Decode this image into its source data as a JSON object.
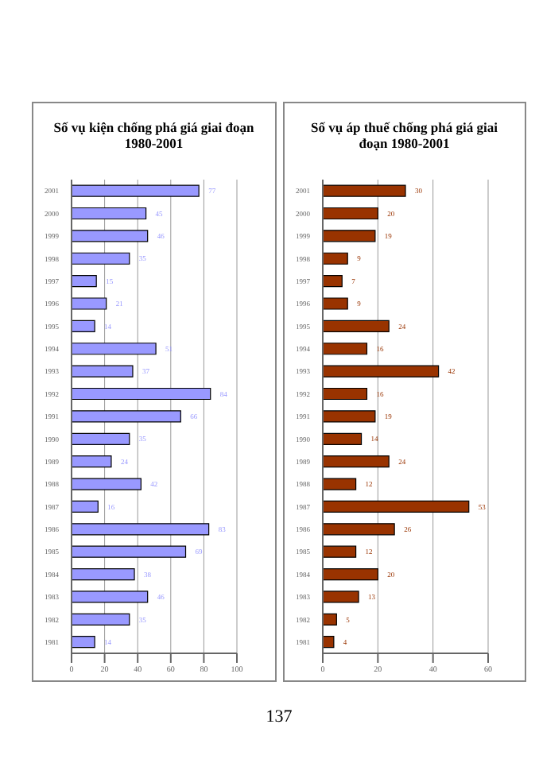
{
  "chart_data": [
    {
      "type": "bar",
      "orientation": "horizontal",
      "title": "Số vụ kiện chống phá giá giai đoạn 1980-2001",
      "categories": [
        "2001",
        "2000",
        "1999",
        "1998",
        "1997",
        "1996",
        "1995",
        "1994",
        "1993",
        "1992",
        "1991",
        "1990",
        "1989",
        "1988",
        "1987",
        "1986",
        "1985",
        "1984",
        "1983",
        "1982",
        "1981"
      ],
      "values": [
        77,
        45,
        46,
        35,
        15,
        21,
        14,
        51,
        37,
        84,
        66,
        35,
        24,
        42,
        16,
        83,
        69,
        38,
        46,
        35,
        14
      ],
      "color": "#9999ff",
      "xlim": [
        0,
        100
      ],
      "xticks": [
        0,
        20,
        40,
        60,
        80,
        100
      ],
      "grid": "x",
      "data_labels": true,
      "legend": false
    },
    {
      "type": "bar",
      "orientation": "horizontal",
      "title": "Số vụ áp thuế chống phá giá giai đoạn 1980-2001",
      "categories": [
        "2001",
        "2000",
        "1999",
        "1998",
        "1997",
        "1996",
        "1995",
        "1994",
        "1993",
        "1992",
        "1991",
        "1990",
        "1989",
        "1988",
        "1987",
        "1986",
        "1985",
        "1984",
        "1983",
        "1982",
        "1981"
      ],
      "values": [
        30,
        20,
        19,
        9,
        7,
        9,
        24,
        16,
        42,
        16,
        19,
        14,
        24,
        12,
        53,
        26,
        12,
        20,
        13,
        5,
        4
      ],
      "color": "#993300",
      "xlim": [
        0,
        60
      ],
      "xticks": [
        0,
        20,
        40,
        60
      ],
      "grid": "x",
      "data_labels": true,
      "legend": false,
      "annotations": [
        "137"
      ]
    }
  ]
}
